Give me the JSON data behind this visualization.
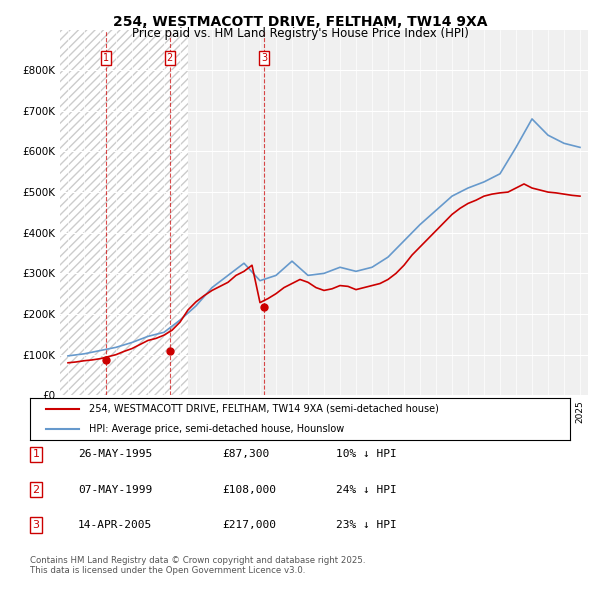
{
  "title": "254, WESTMACOTT DRIVE, FELTHAM, TW14 9XA",
  "subtitle": "Price paid vs. HM Land Registry's House Price Index (HPI)",
  "ylabel": "",
  "ylim": [
    0,
    900000
  ],
  "yticks": [
    0,
    100000,
    200000,
    300000,
    400000,
    500000,
    600000,
    700000,
    800000
  ],
  "ytick_labels": [
    "£0",
    "£100K",
    "£200K",
    "£300K",
    "£400K",
    "£500K",
    "£600K",
    "£700K",
    "£800K"
  ],
  "background_color": "#ffffff",
  "plot_bg_color": "#f0f0f0",
  "hatch_color": "#d0d0d0",
  "legend1": "254, WESTMACOTT DRIVE, FELTHAM, TW14 9XA (semi-detached house)",
  "legend2": "HPI: Average price, semi-detached house, Hounslow",
  "purchase_dates": [
    "1995-05-26",
    "1999-05-07",
    "2005-04-14"
  ],
  "purchase_prices": [
    87300,
    108000,
    217000
  ],
  "purchase_labels": [
    "1",
    "2",
    "3"
  ],
  "purchase_pct": [
    "10% ↓ HPI",
    "24% ↓ HPI",
    "23% ↓ HPI"
  ],
  "purchase_date_labels": [
    "26-MAY-1995",
    "07-MAY-1999",
    "14-APR-2005"
  ],
  "purchase_price_labels": [
    "£87,300",
    "£108,000",
    "£217,000"
  ],
  "table_rows": [
    [
      "1",
      "26-MAY-1995",
      "£87,300",
      "10% ↓ HPI"
    ],
    [
      "2",
      "07-MAY-1999",
      "£108,000",
      "24% ↓ HPI"
    ],
    [
      "3",
      "14-APR-2005",
      "£217,000",
      "23% ↓ HPI"
    ]
  ],
  "footer": "Contains HM Land Registry data © Crown copyright and database right 2025.\nThis data is licensed under the Open Government Licence v3.0.",
  "line_color_red": "#cc0000",
  "line_color_blue": "#6699cc",
  "marker_color_red": "#cc0000",
  "hpi_years": [
    1993,
    1994,
    1995,
    1996,
    1997,
    1998,
    1999,
    2000,
    2001,
    2002,
    2003,
    2004,
    2005,
    2006,
    2007,
    2008,
    2009,
    2010,
    2011,
    2012,
    2013,
    2014,
    2015,
    2016,
    2017,
    2018,
    2019,
    2020,
    2021,
    2022,
    2023,
    2024,
    2025
  ],
  "hpi_values": [
    97000,
    102000,
    110000,
    118000,
    130000,
    145000,
    155000,
    185000,
    220000,
    265000,
    295000,
    325000,
    282000,
    295000,
    330000,
    295000,
    300000,
    315000,
    305000,
    315000,
    340000,
    380000,
    420000,
    455000,
    490000,
    510000,
    525000,
    545000,
    610000,
    680000,
    640000,
    620000,
    610000
  ],
  "price_years": [
    1993.0,
    1993.5,
    1994.0,
    1994.5,
    1995.0,
    1995.5,
    1996.0,
    1996.5,
    1997.0,
    1997.5,
    1998.0,
    1998.5,
    1999.0,
    1999.5,
    2000.0,
    2000.5,
    2001.0,
    2001.5,
    2002.0,
    2002.5,
    2003.0,
    2003.5,
    2004.0,
    2004.5,
    2005.0,
    2005.5,
    2006.0,
    2006.5,
    2007.0,
    2007.5,
    2008.0,
    2008.5,
    2009.0,
    2009.5,
    2010.0,
    2010.5,
    2011.0,
    2011.5,
    2012.0,
    2012.5,
    2013.0,
    2013.5,
    2014.0,
    2014.5,
    2015.0,
    2015.5,
    2016.0,
    2016.5,
    2017.0,
    2017.5,
    2018.0,
    2018.5,
    2019.0,
    2019.5,
    2020.0,
    2020.5,
    2021.0,
    2021.5,
    2022.0,
    2022.5,
    2023.0,
    2023.5,
    2024.0,
    2024.5,
    2025.0
  ],
  "price_values": [
    80000,
    82000,
    85000,
    87000,
    90000,
    95000,
    100000,
    108000,
    115000,
    125000,
    135000,
    140000,
    148000,
    160000,
    180000,
    210000,
    230000,
    245000,
    258000,
    268000,
    278000,
    295000,
    305000,
    320000,
    228000,
    238000,
    250000,
    265000,
    275000,
    285000,
    278000,
    265000,
    258000,
    262000,
    270000,
    268000,
    260000,
    265000,
    270000,
    275000,
    285000,
    300000,
    320000,
    345000,
    365000,
    385000,
    405000,
    425000,
    445000,
    460000,
    472000,
    480000,
    490000,
    495000,
    498000,
    500000,
    510000,
    520000,
    510000,
    505000,
    500000,
    498000,
    495000,
    492000,
    490000
  ]
}
